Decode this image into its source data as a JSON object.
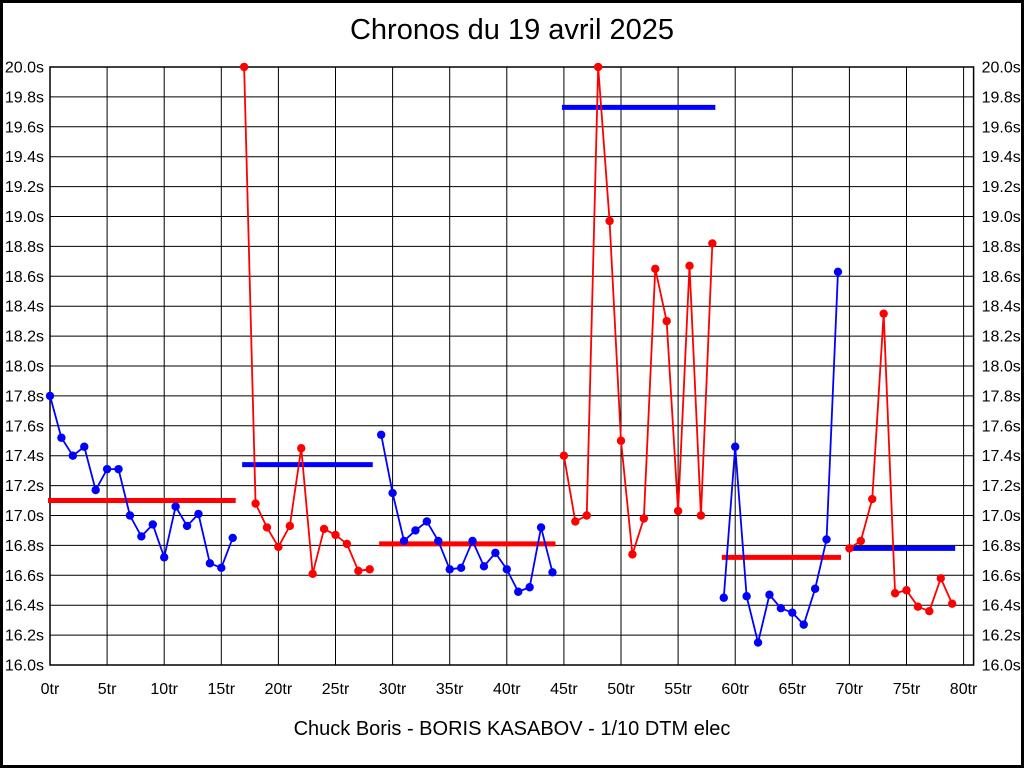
{
  "header": {
    "title": "Chronos du 19 avril 2025"
  },
  "footer": {
    "caption": "Chuck Boris - BORIS KASABOV - 1/10 DTM elec"
  },
  "chart_data": {
    "type": "line",
    "title": "Chronos du 19 avril 2025",
    "caption": "Chuck Boris - BORIS KASABOV - 1/10 DTM elec",
    "xlabel": "",
    "ylabel": "",
    "x_unit": "tr",
    "y_unit": "s",
    "xlim": [
      0,
      80
    ],
    "x_tick_step": 5,
    "ylim": [
      16.0,
      20.0
    ],
    "y_tick_step": 0.2,
    "grid": true,
    "legend": "none",
    "colors": {
      "red": "#ff0000",
      "blue": "#0000ff",
      "grid": "#000000",
      "text": "#000000",
      "background": "#ffffff"
    },
    "x_tick_labels": [
      "0tr",
      "5tr",
      "10tr",
      "15tr",
      "20tr",
      "25tr",
      "30tr",
      "35tr",
      "40tr",
      "45tr",
      "50tr",
      "55tr",
      "60tr",
      "65tr",
      "70tr",
      "75tr",
      "80tr"
    ],
    "y_tick_labels": [
      "20.0s",
      "19.8s",
      "19.6s",
      "19.4s",
      "19.2s",
      "19.0s",
      "18.8s",
      "18.6s",
      "18.4s",
      "18.2s",
      "18.0s",
      "17.8s",
      "17.6s",
      "17.4s",
      "17.2s",
      "17.0s",
      "16.8s",
      "16.6s",
      "16.4s",
      "16.2s",
      "16.0s"
    ],
    "stints": [
      {
        "name": "stint-1",
        "color": "#0000ff",
        "start_lap": 0,
        "values": [
          17.8,
          17.52,
          17.4,
          17.46,
          17.17,
          17.31,
          17.31,
          17.0,
          16.86,
          16.94,
          16.72,
          17.06,
          16.93,
          17.01,
          16.68,
          16.65,
          16.85
        ]
      },
      {
        "name": "stint-2",
        "color": "#ff0000",
        "start_lap": 17,
        "values": [
          20.0,
          17.08,
          16.92,
          16.79,
          16.93,
          17.45,
          16.61,
          16.91,
          16.87,
          16.81,
          16.63,
          16.64
        ]
      },
      {
        "name": "stint-3",
        "color": "#0000ff",
        "start_lap": 29,
        "values": [
          17.54,
          17.15,
          16.83,
          16.9,
          16.96,
          16.83,
          16.64,
          16.65,
          16.83,
          16.66,
          16.75,
          16.64,
          16.49,
          16.52,
          16.92,
          16.62
        ]
      },
      {
        "name": "stint-4",
        "color": "#ff0000",
        "start_lap": 45,
        "values": [
          17.4,
          16.96,
          17.0,
          20.0,
          18.97,
          17.5,
          16.74,
          16.98,
          18.65,
          18.3,
          17.03,
          18.67,
          17.0,
          18.82
        ]
      },
      {
        "name": "stint-5",
        "color": "#0000ff",
        "start_lap": 59,
        "values": [
          16.45,
          17.46,
          16.46,
          16.15,
          16.47,
          16.38,
          16.35,
          16.27,
          16.51,
          16.84,
          18.63
        ]
      },
      {
        "name": "stint-6",
        "color": "#ff0000",
        "start_lap": 70,
        "values": [
          16.78,
          16.83,
          17.11,
          18.35,
          16.48,
          16.5,
          16.39,
          16.36,
          16.58,
          16.41
        ]
      }
    ],
    "average_bars": [
      {
        "color": "#ff0000",
        "value": 17.1,
        "from_lap": 0,
        "to_lap": 16
      },
      {
        "color": "#0000ff",
        "value": 17.34,
        "from_lap": 17,
        "to_lap": 28
      },
      {
        "color": "#ff0000",
        "value": 16.81,
        "from_lap": 29,
        "to_lap": 44
      },
      {
        "color": "#0000ff",
        "value": 19.73,
        "from_lap": 45,
        "to_lap": 58
      },
      {
        "color": "#ff0000",
        "value": 16.72,
        "from_lap": 59,
        "to_lap": 69
      },
      {
        "color": "#0000ff",
        "value": 16.78,
        "from_lap": 70,
        "to_lap": 79
      }
    ]
  }
}
